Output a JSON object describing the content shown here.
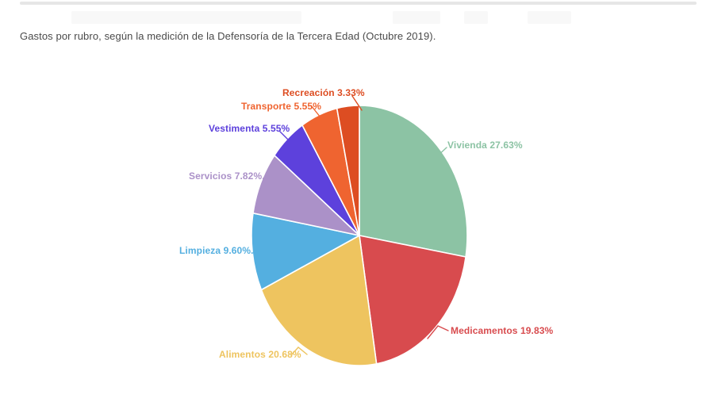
{
  "page": {
    "title": "Gastos por rubro, según la medición de la Defensoría de la Tercera Edad (Octubre 2019)."
  },
  "chart_data": {
    "type": "pie",
    "title": "Gastos por rubro, según la medición de la Defensoría de la Tercera Edad (Octubre 2019).",
    "unit": "%",
    "legend_position": "outside-callout-labels",
    "start_angle_deg_from_top": 0,
    "direction": "clockwise",
    "slices": [
      {
        "label": "Vivienda",
        "value": 27.63,
        "color": "#8cc3a4",
        "display": "Vivienda 27.63%"
      },
      {
        "label": "Medicamentos",
        "value": 19.83,
        "color": "#d84b4e",
        "display": "Medicamentos 19.83%"
      },
      {
        "label": "Alimentos",
        "value": 20.68,
        "color": "#eec45f",
        "display": "Alimentos 20.68%"
      },
      {
        "label": "Limpieza",
        "value": 9.6,
        "color": "#54afe0",
        "display": "Limpieza 9.60%..."
      },
      {
        "label": "Servicios",
        "value": 7.82,
        "color": "#ab91c8",
        "display": "Servicios 7.82%..."
      },
      {
        "label": "Vestimenta",
        "value": 5.55,
        "color": "#5d41dc",
        "display": "Vestimenta 5.55%"
      },
      {
        "label": "Transporte",
        "value": 5.55,
        "color": "#ef6430",
        "display": "Transporte 5.55%"
      },
      {
        "label": "Recreación",
        "value": 3.33,
        "color": "#dd4d22",
        "display": "Recreación 3.33%"
      }
    ]
  }
}
